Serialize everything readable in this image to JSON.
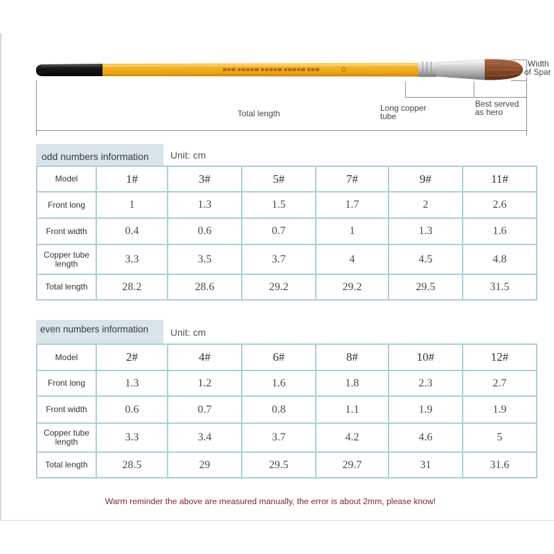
{
  "colors": {
    "handle_yellow": "#f2b01e",
    "handle_black": "#141414",
    "ferrule_silver": "#c9c9c9",
    "bristle_brown": "#8a4a2c",
    "table_border": "#a9d0da",
    "tab_background": "#d8e4e9",
    "reminder_text": "#7b2a2a"
  },
  "diagram": {
    "width_label": [
      "Width",
      "of Spar"
    ],
    "total_length_label": "Total length",
    "copper_tube_label": [
      "Long copper",
      "tube"
    ],
    "bristle_label": [
      "Best served",
      "as hero"
    ]
  },
  "odd_table": {
    "title": "odd numbers information",
    "unit": "Unit: cm",
    "rows": [
      {
        "label": "Model",
        "values": [
          "1#",
          "3#",
          "5#",
          "7#",
          "9#",
          "11#"
        ]
      },
      {
        "label": "Front long",
        "values": [
          1,
          1.3,
          1.5,
          1.7,
          2,
          2.6
        ]
      },
      {
        "label": "Front width",
        "values": [
          0.4,
          0.6,
          0.7,
          1,
          1.3,
          1.6
        ]
      },
      {
        "label": "Copper tube length",
        "values": [
          3.3,
          3.5,
          3.7,
          4,
          4.5,
          4.8
        ]
      },
      {
        "label": "Total length",
        "values": [
          28.2,
          28.6,
          29.2,
          29.2,
          29.5,
          31.5
        ]
      }
    ]
  },
  "even_table": {
    "title": "even numbers information",
    "unit": "Unit: cm",
    "rows": [
      {
        "label": "Model",
        "values": [
          "2#",
          "4#",
          "6#",
          "8#",
          "10#",
          "12#"
        ]
      },
      {
        "label": "Front long",
        "values": [
          1.3,
          1.2,
          1.6,
          1.8,
          2.3,
          2.7
        ]
      },
      {
        "label": "Front width",
        "values": [
          0.6,
          0.7,
          0.8,
          1.1,
          1.9,
          1.9
        ]
      },
      {
        "label": "Copper tube length",
        "values": [
          3.3,
          3.4,
          3.7,
          4.2,
          4.6,
          5
        ]
      },
      {
        "label": "Total length",
        "values": [
          28.5,
          29,
          29.5,
          29.7,
          31,
          31.6
        ]
      }
    ]
  },
  "reminder": "Warm reminder the above are measured manually, the error is about 2mm, please know!"
}
